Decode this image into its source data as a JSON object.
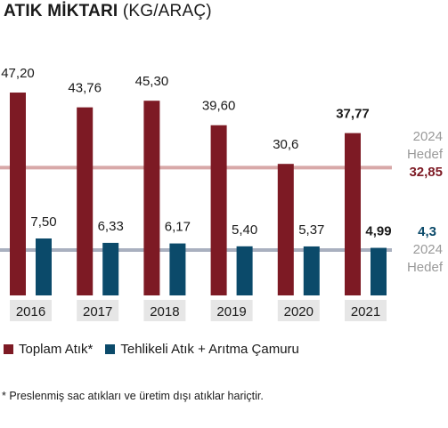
{
  "title": {
    "main": "ATIK MİKTARI",
    "unit": "(KG/ARAÇ)"
  },
  "colors": {
    "total": "#7d1a24",
    "hazardous": "#0b4a6a",
    "target_total_line": "#d8a8a8",
    "target_haz_line": "#a9b0bf",
    "target_text_grey": "#9a9a9a"
  },
  "chart_data": {
    "type": "bar",
    "title": "ATIK MİKTARI (KG/ARAÇ)",
    "categories": [
      "2016",
      "2017",
      "2018",
      "2019",
      "2020",
      "2021"
    ],
    "series": [
      {
        "name": "Toplam Atık*",
        "values": [
          47.2,
          43.76,
          45.3,
          39.6,
          30.6,
          37.77
        ],
        "labels": [
          "47,20",
          "43,76",
          "45,30",
          "39,60",
          "30,6",
          "37,77"
        ]
      },
      {
        "name": "Tehlikeli Atık + Arıtma Çamuru",
        "values": [
          7.5,
          6.33,
          6.17,
          5.4,
          5.37,
          4.99
        ],
        "labels": [
          "7,50",
          "6,33",
          "6,17",
          "5,40",
          "5,37",
          "4,99"
        ]
      }
    ],
    "targets": [
      {
        "series": "Toplam Atık*",
        "value": 32.85,
        "label_line1": "2024",
        "label_line2": "Hedef",
        "value_label": "32,85"
      },
      {
        "series": "Tehlikeli Atık + Arıtma Çamuru",
        "value": 4.3,
        "label_line1": "2024",
        "label_line2": "Hedef",
        "value_label": "4,3"
      }
    ],
    "bold_labels": [
      "37,77",
      "4,99"
    ],
    "ylim": [
      0,
      50
    ],
    "grid": false,
    "legend_position": "bottom"
  },
  "legend": [
    {
      "label": "Toplam Atık*",
      "color_key": "total"
    },
    {
      "label": "Tehlikeli Atık + Arıtma Çamuru",
      "color_key": "hazardous"
    }
  ],
  "footnote": "* Preslenmiş sac atıkları ve üretim dışı atıklar hariçtir."
}
